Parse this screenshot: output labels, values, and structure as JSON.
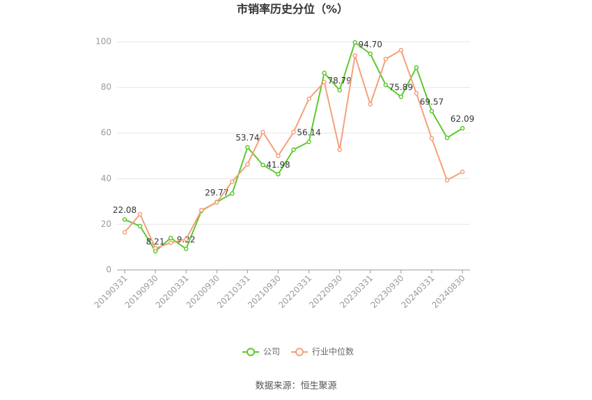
{
  "chart_data": {
    "type": "line",
    "title": "市销率历史分位（%）",
    "source": "数据来源：恒生聚源",
    "categories": [
      "20190331",
      null,
      "20190930",
      null,
      "20200331",
      null,
      "20200930",
      null,
      "20210331",
      null,
      "20210930",
      null,
      "20220331",
      null,
      "20220930",
      null,
      "20230331",
      null,
      "20230930",
      null,
      "20240331",
      null,
      "20240830"
    ],
    "series": [
      {
        "name": "公司",
        "color": "#5cc82d",
        "values": [
          22.08,
          19.2,
          8.21,
          14.0,
          9.22,
          25.9,
          29.77,
          33.5,
          53.74,
          46.0,
          41.98,
          52.7,
          56.14,
          86.3,
          78.79,
          99.7,
          94.7,
          81.1,
          75.89,
          88.7,
          69.57,
          57.9,
          62.09
        ],
        "value_labels": [
          "22.08",
          null,
          "8.21",
          null,
          "9.22",
          null,
          "29.77",
          null,
          "53.74",
          null,
          "41.98",
          null,
          "56.14",
          null,
          "78.79",
          null,
          "94.70",
          null,
          "75.89",
          null,
          "69.57",
          null,
          "62.09"
        ]
      },
      {
        "name": "行业中位数",
        "color": "#f4a07a",
        "values": [
          16.5,
          24.4,
          9.5,
          11.9,
          13.4,
          26.2,
          29.6,
          38.7,
          46.3,
          60.4,
          50.0,
          60.4,
          75.0,
          82.3,
          52.7,
          93.9,
          72.6,
          92.4,
          96.3,
          77.4,
          57.6,
          39.3,
          43.0
        ]
      }
    ],
    "ylim": [
      0,
      100
    ],
    "yticks": [
      0,
      20,
      40,
      60,
      80,
      100
    ],
    "grid": true
  }
}
